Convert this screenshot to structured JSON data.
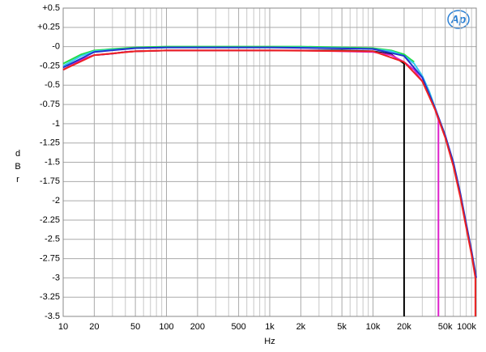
{
  "chart_data": {
    "type": "line",
    "x_label": "Hz",
    "y_label": "dBr",
    "logo": "Ap",
    "xscale": "log",
    "grid": true,
    "xlim": [
      10,
      100000
    ],
    "ylim": [
      -3.5,
      0.5
    ],
    "xticks": [
      10,
      20,
      50,
      100,
      200,
      500,
      {
        "value": 1000,
        "label": "1k"
      },
      {
        "value": 2000,
        "label": "2k"
      },
      {
        "value": 5000,
        "label": "5k"
      },
      {
        "value": 10000,
        "label": "10k"
      },
      {
        "value": 20000,
        "label": "20k"
      },
      {
        "value": 50000,
        "label": "50k"
      },
      {
        "value": 100000,
        "label": "100k"
      }
    ],
    "xminorticks": [
      30,
      40,
      60,
      70,
      80,
      90,
      300,
      400,
      600,
      700,
      800,
      900,
      3000,
      4000,
      6000,
      7000,
      8000,
      9000,
      30000,
      40000,
      60000,
      70000,
      80000,
      90000
    ],
    "yticks": [
      {
        "value": 0.5,
        "label": "+0.5"
      },
      {
        "value": 0.25,
        "label": "+0.25"
      },
      {
        "value": 0,
        "label": "-0"
      },
      -0.25,
      -0.5,
      -0.75,
      -1,
      -1.25,
      -1.5,
      -1.75,
      -2,
      -2.25,
      -2.5,
      -2.75,
      -3,
      -3.25,
      -3.5
    ],
    "series": [
      {
        "color": "#22dd44",
        "x": [
          10,
          15,
          20,
          25,
          30,
          40,
          50,
          100,
          200,
          500,
          1000,
          2000,
          5000,
          10000,
          15000,
          20000,
          25000
        ],
        "values": [
          -0.22,
          -0.1,
          -0.05,
          -0.04,
          -0.03,
          -0.02,
          -0.01,
          0,
          0,
          0,
          0,
          0,
          -0.01,
          -0.02,
          -0.05,
          -0.1,
          -0.2
        ]
      },
      {
        "color": "#33ccee",
        "x": [
          10,
          15,
          20,
          25,
          30,
          40,
          50,
          100,
          200,
          500,
          1000,
          2000,
          5000,
          10000,
          15000,
          20000,
          25000,
          30000,
          35000,
          40000,
          45000
        ],
        "values": [
          -0.25,
          -0.12,
          -0.06,
          -0.05,
          -0.04,
          -0.03,
          -0.02,
          -0.01,
          -0.01,
          -0.01,
          -0.01,
          -0.01,
          -0.02,
          -0.03,
          -0.06,
          -0.12,
          -0.22,
          -0.38,
          -0.58,
          -0.8,
          -1.0
        ]
      },
      {
        "color": "#000000",
        "x": [
          10,
          15,
          20,
          25,
          30,
          40,
          50,
          100,
          200,
          500,
          1000,
          2000,
          5000,
          10000,
          15000,
          20000,
          20000
        ],
        "values": [
          -0.3,
          -0.17,
          -0.11,
          -0.1,
          -0.09,
          -0.07,
          -0.06,
          -0.05,
          -0.05,
          -0.05,
          -0.05,
          -0.05,
          -0.05,
          -0.06,
          -0.1,
          -0.22,
          -3.5
        ]
      },
      {
        "color": "#dd22cc",
        "x": [
          10,
          15,
          20,
          25,
          30,
          40,
          50,
          100,
          200,
          500,
          1000,
          2000,
          5000,
          10000,
          15000,
          20000,
          25000,
          30000,
          35000,
          40000,
          43000,
          43000
        ],
        "values": [
          -0.3,
          -0.17,
          -0.11,
          -0.1,
          -0.09,
          -0.07,
          -0.06,
          -0.05,
          -0.05,
          -0.05,
          -0.05,
          -0.05,
          -0.06,
          -0.07,
          -0.11,
          -0.2,
          -0.3,
          -0.45,
          -0.62,
          -0.82,
          -0.95,
          -3.5
        ]
      },
      {
        "color": "#2233cc",
        "x": [
          10,
          20,
          50,
          100,
          1000,
          10000,
          20000,
          30000,
          40000,
          50000,
          60000,
          70000,
          80000,
          90000,
          100000
        ],
        "values": [
          -0.27,
          -0.07,
          -0.02,
          -0.01,
          -0.01,
          -0.03,
          -0.12,
          -0.4,
          -0.8,
          -1.15,
          -1.5,
          -1.9,
          -2.3,
          -2.65,
          -3.0
        ]
      },
      {
        "color": "#ee2222",
        "x": [
          10,
          20,
          50,
          100,
          1000,
          10000,
          20000,
          30000,
          40000,
          50000,
          60000,
          70000,
          80000,
          90000,
          98000,
          98000
        ],
        "values": [
          -0.3,
          -0.11,
          -0.06,
          -0.05,
          -0.05,
          -0.06,
          -0.2,
          -0.45,
          -0.82,
          -1.18,
          -1.55,
          -1.95,
          -2.35,
          -2.7,
          -3.0,
          -3.5
        ]
      }
    ]
  }
}
